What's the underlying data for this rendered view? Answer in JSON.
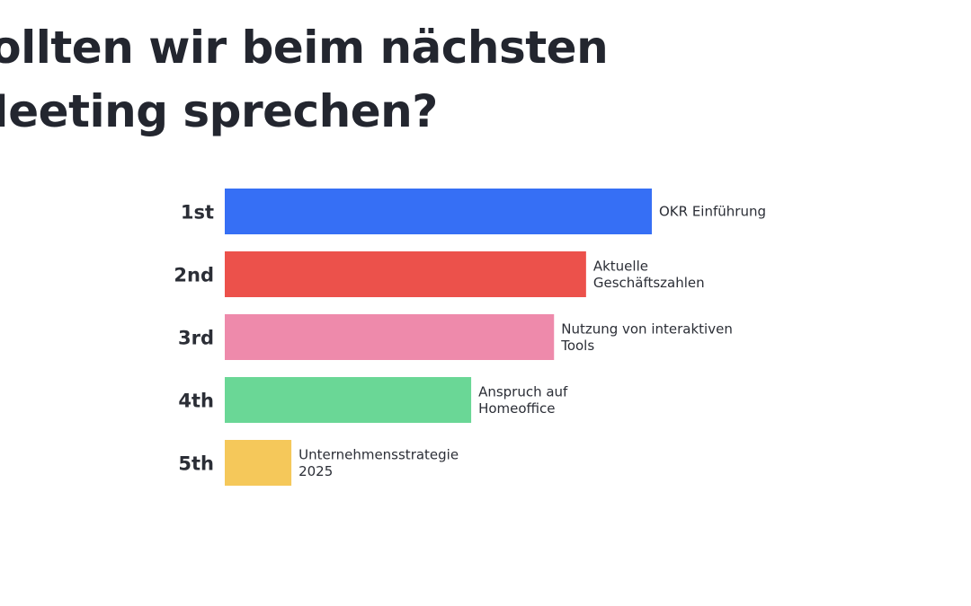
{
  "question": {
    "title": "sollten wir beim nächsten Meeting sprechen?"
  },
  "chart_data": {
    "type": "bar",
    "orientation": "horizontal",
    "title": "sollten wir beim nächsten Meeting sprechen?",
    "categories": [
      "1st",
      "2nd",
      "3rd",
      "4th",
      "5th"
    ],
    "items": [
      {
        "rank": "1st",
        "label_lines": [
          "OKR Einführung"
        ],
        "value": 100,
        "color": "#366ff5"
      },
      {
        "rank": "2nd",
        "label_lines": [
          "Aktuelle",
          "Geschäftszahlen"
        ],
        "value": 84.6,
        "color": "#ec514b"
      },
      {
        "rank": "3rd",
        "label_lines": [
          "Nutzung von interaktiven",
          "Tools"
        ],
        "value": 77.1,
        "color": "#ee8aab"
      },
      {
        "rank": "4th",
        "label_lines": [
          "Anspruch auf",
          "Homeoffice"
        ],
        "value": 57.7,
        "color": "#6ad796"
      },
      {
        "rank": "5th",
        "label_lines": [
          "Unternehmensstrategie",
          "2025"
        ],
        "value": 15.6,
        "color": "#f5c85a"
      }
    ],
    "xlim": [
      0,
      100
    ],
    "grid": false,
    "legend": "none"
  }
}
